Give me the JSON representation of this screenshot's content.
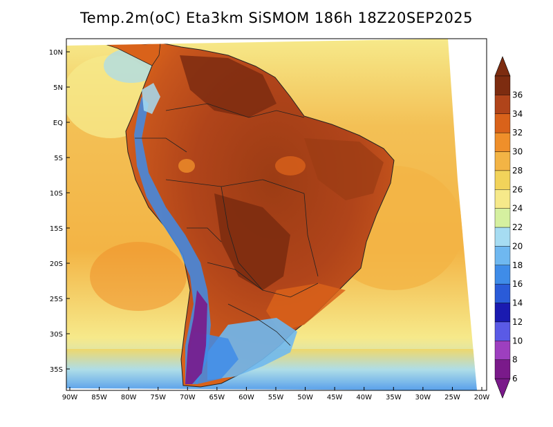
{
  "title": "Temp.2m(oC) Eta3km SiSMOM 186h 18Z20SEP2025",
  "map": {
    "lon_labels": [
      "90W",
      "85W",
      "80W",
      "75W",
      "70W",
      "65W",
      "60W",
      "55W",
      "50W",
      "45W",
      "40W",
      "35W",
      "30W",
      "25W",
      "20W"
    ],
    "lat_labels": [
      "10N",
      "5N",
      "EQ",
      "5S",
      "10S",
      "15S",
      "20S",
      "25S",
      "30S",
      "35S"
    ]
  },
  "colorbar": {
    "levels": [
      "6",
      "8",
      "10",
      "12",
      "14",
      "16",
      "18",
      "20",
      "22",
      "24",
      "26",
      "28",
      "30",
      "32",
      "34",
      "36"
    ],
    "colors": [
      "#7a1a8a",
      "#9d3fbf",
      "#5a5ae6",
      "#1a1ab0",
      "#2a5bd8",
      "#3f8ce8",
      "#6fb8f0",
      "#a6dcf2",
      "#d5f0a0",
      "#f6e98a",
      "#f2d35a",
      "#f3b445",
      "#ef8f2a",
      "#d9621a",
      "#b0441a",
      "#7d2c10"
    ]
  },
  "colors": {
    "ocean_warm": "#f3b445",
    "ocean_mild": "#f6e98a",
    "land_hot": "#b0441a",
    "land_very_hot": "#7d2c10",
    "andes_cold": "#3f8ce8"
  }
}
